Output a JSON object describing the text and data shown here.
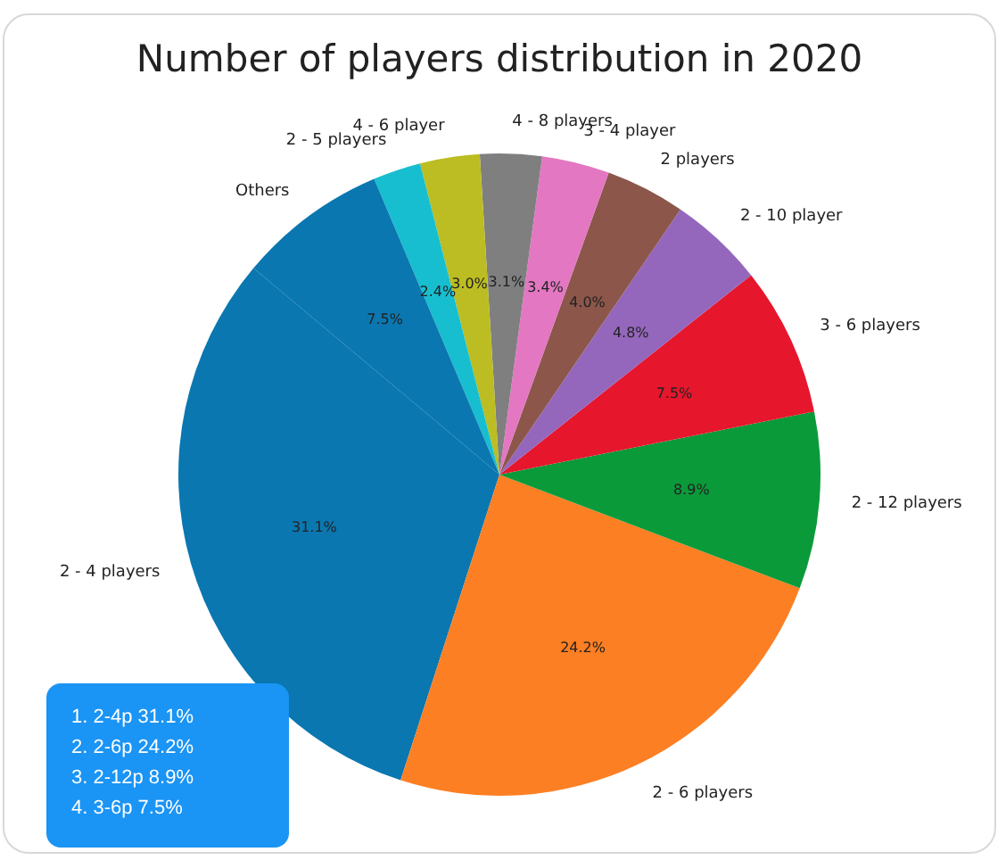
{
  "chart_data": {
    "type": "pie",
    "title": "Number of players distribution in 2020",
    "categories": [
      "2 - 4 players",
      "2 - 6 players",
      "2 - 12 players",
      "3 - 6 players",
      "2 - 10 player",
      "2 players",
      "3 - 4 player",
      "4 - 8 players",
      "4 - 6 player",
      "2 - 5 players",
      "Others"
    ],
    "values": [
      31.1,
      24.2,
      8.9,
      7.5,
      4.8,
      4.0,
      3.4,
      3.1,
      3.0,
      2.4,
      7.5
    ],
    "value_labels": [
      "31.1%",
      "24.2%",
      "8.9%",
      "7.5%",
      "4.8%",
      "4.0%",
      "3.4%",
      "3.1%",
      "3.0%",
      "2.4%",
      "7.5%"
    ],
    "colors": [
      "#0a77b0",
      "#fd7f23",
      "#0a9a3a",
      "#e6162d",
      "#9467bd",
      "#8c564b",
      "#e377c2",
      "#7f7f7f",
      "#bcbd22",
      "#17becf",
      "#0a77b0"
    ],
    "annotations": [
      "1. 2-4p 31.1%",
      "2. 2-6p 24.2%",
      "3. 2-12p 8.9%",
      "4. 3-6p 7.5%"
    ]
  }
}
